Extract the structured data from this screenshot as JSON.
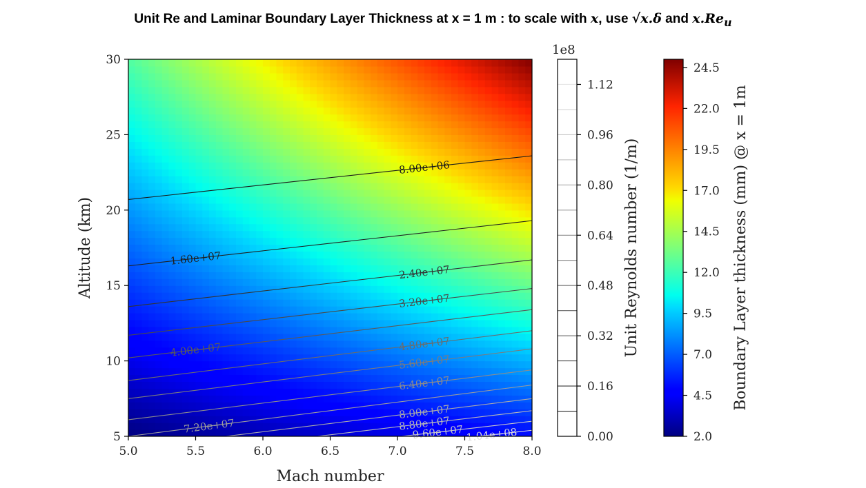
{
  "title": {
    "prefix": "Unit Re and Laminar Boundary Layer Thickness at x = 1 m : to scale with ",
    "var1": "x",
    "mid1": ", use ",
    "sqrt_expr": "√x.δ",
    "mid2": " and ",
    "var2": "x.Re",
    "sub": "u"
  },
  "chart_data": {
    "type": "heatmap",
    "xlabel": "Mach number",
    "ylabel": "Altitude (km)",
    "xlim": [
      5.0,
      8.0
    ],
    "ylim": [
      5,
      30
    ],
    "xticks": [
      "5.0",
      "5.5",
      "6.0",
      "6.5",
      "7.0",
      "7.5",
      "8.0"
    ],
    "yticks": [
      "5",
      "10",
      "15",
      "20",
      "25",
      "30"
    ],
    "grid": false,
    "contours": [
      {
        "label": "8.00e+06",
        "left_alt": 20.7,
        "right_alt": 23.6,
        "label_x": 7.2,
        "color": "#1a1a1a"
      },
      {
        "label": "1.60e+07",
        "left_alt": 16.3,
        "right_alt": 19.3,
        "label_x": 5.5,
        "color": "#1f1f1f"
      },
      {
        "label": "2.40e+07",
        "left_alt": 13.6,
        "right_alt": 16.7,
        "label_x": 7.2,
        "color": "#333333"
      },
      {
        "label": "3.20e+07",
        "left_alt": 11.7,
        "right_alt": 14.8,
        "label_x": 7.2,
        "color": "#4a4a4a"
      },
      {
        "label": "4.00e+07",
        "left_alt": 10.2,
        "right_alt": 13.4,
        "label_x": 5.5,
        "color": "#5a5a5a"
      },
      {
        "label": "4.80e+07",
        "left_alt": 8.7,
        "right_alt": 12.0,
        "label_x": 7.2,
        "color": "#6b6b6b"
      },
      {
        "label": "5.60e+07",
        "left_alt": 7.5,
        "right_alt": 10.8,
        "label_x": 7.2,
        "color": "#7c7c7c"
      },
      {
        "label": "6.40e+07",
        "left_alt": 6.1,
        "right_alt": 9.4,
        "label_x": 7.2,
        "color": "#8c8c8c"
      },
      {
        "label": "7.20e+07",
        "left_alt": 5.0,
        "right_alt": 8.4,
        "label_x": 5.6,
        "color": "#9c9c9c"
      },
      {
        "label": "8.00e+07",
        "left_alt": 4.2,
        "right_alt": 7.5,
        "label_x": 7.2,
        "color": "#aaaaaa"
      },
      {
        "label": "8.80e+07",
        "left_alt": 3.5,
        "right_alt": 6.7,
        "label_x": 7.2,
        "color": "#b8b8b8"
      },
      {
        "label": "9.60e+07",
        "left_alt": 2.9,
        "right_alt": 6.0,
        "label_x": 7.3,
        "color": "#c8c8c8"
      },
      {
        "label": "1.04e+08",
        "left_alt": 2.4,
        "right_alt": 5.4,
        "label_x": 7.7,
        "color": "#dddddd"
      }
    ],
    "thickness_field": {
      "colormap": "jet",
      "range_mm": [
        2.0,
        25.0
      ],
      "corners_mm": {
        "m5_alt5": 2.0,
        "m8_alt5": 5.0,
        "m5_alt30": 12.5,
        "m8_alt30": 25.0
      }
    },
    "colorbar_re": {
      "label": "Unit Reynolds number (1/m)",
      "multiplier": "1e8",
      "range": [
        0.0,
        1.2
      ],
      "ticks": [
        "0.00",
        "0.16",
        "0.32",
        "0.48",
        "0.64",
        "0.80",
        "0.96",
        "1.12"
      ],
      "levels": [
        0.08,
        0.16,
        0.24,
        0.32,
        0.4,
        0.48,
        0.56,
        0.64,
        0.72,
        0.8,
        0.88,
        0.96,
        1.04,
        1.12
      ]
    },
    "colorbar_bl": {
      "label": "Boundary Layer thickness (mm) @ x = 1m",
      "range": [
        2.0,
        25.0
      ],
      "ticks": [
        "2.0",
        "4.5",
        "7.0",
        "9.5",
        "12.0",
        "14.5",
        "17.0",
        "19.5",
        "22.0",
        "24.5"
      ]
    }
  }
}
